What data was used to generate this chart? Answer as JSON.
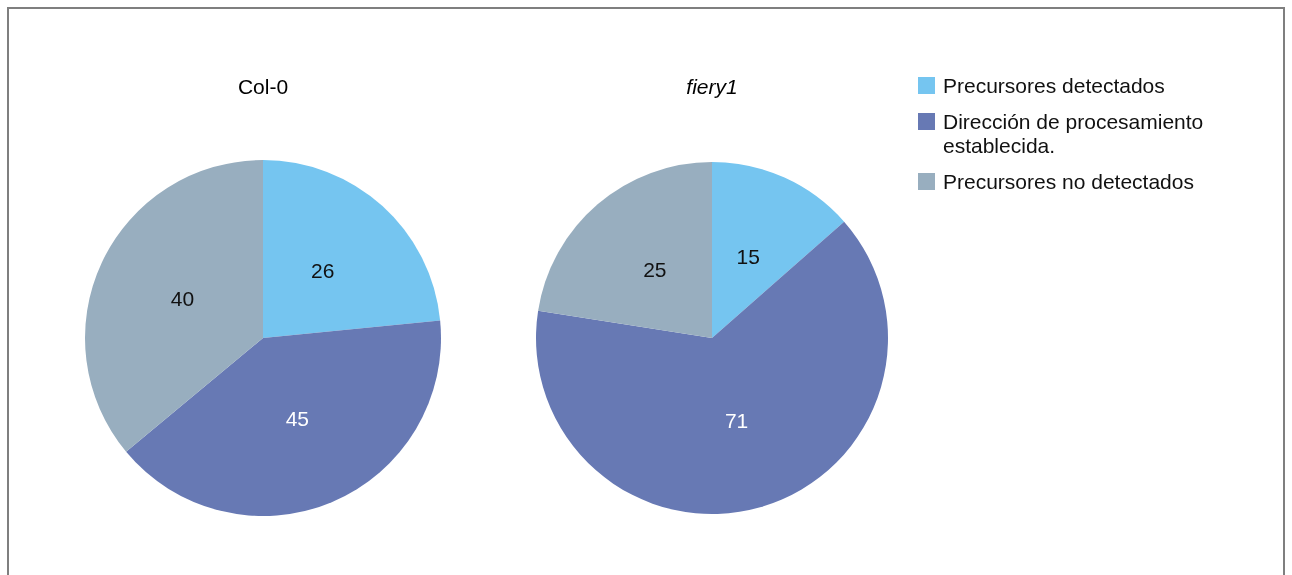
{
  "chart_data": {
    "type": "pie",
    "categories": [
      "Precursores detectados",
      "Dirección de procesamiento establecida.",
      "Precursores no detectados"
    ],
    "colors": [
      "#75c5f0",
      "#6779b4",
      "#98aebf"
    ],
    "data_labels": true,
    "legend": "right",
    "series": [
      {
        "name": "Col-0",
        "values": [
          26,
          45,
          40
        ]
      },
      {
        "name": "fiery1",
        "values": [
          15,
          71,
          25
        ]
      }
    ]
  }
}
